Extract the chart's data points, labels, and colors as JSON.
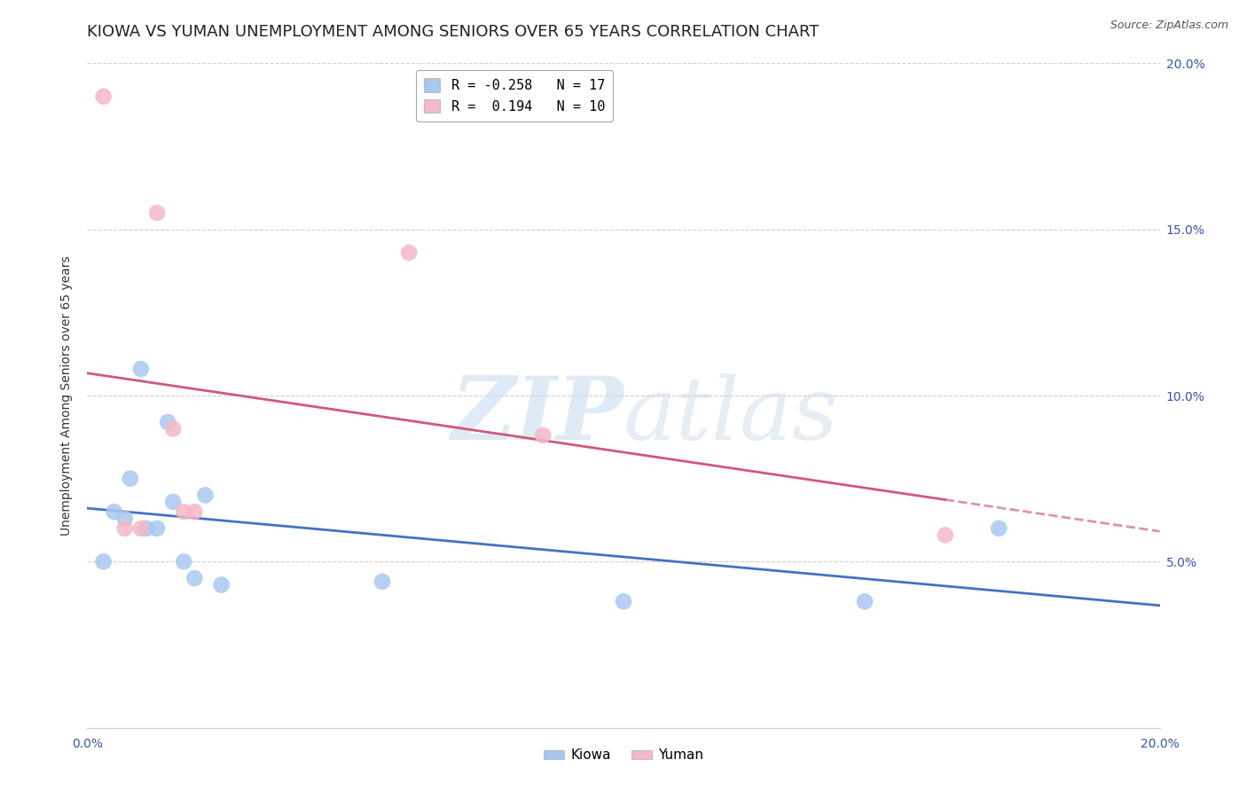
{
  "title": "KIOWA VS YUMAN UNEMPLOYMENT AMONG SENIORS OVER 65 YEARS CORRELATION CHART",
  "source": "Source: ZipAtlas.com",
  "ylabel": "Unemployment Among Seniors over 65 years",
  "xlim": [
    0.0,
    0.2
  ],
  "ylim": [
    0.0,
    0.2
  ],
  "xticks": [
    0.0,
    0.05,
    0.1,
    0.15,
    0.2
  ],
  "yticks": [
    0.0,
    0.05,
    0.1,
    0.15,
    0.2
  ],
  "xtick_labels": [
    "0.0%",
    "",
    "",
    "",
    "20.0%"
  ],
  "ytick_labels_left": [
    "",
    "",
    "",
    "",
    ""
  ],
  "ytick_labels_right": [
    "",
    "5.0%",
    "10.0%",
    "15.0%",
    "20.0%"
  ],
  "kiowa_color": "#a8c8f0",
  "yuman_color": "#f5b8c8",
  "kiowa_line_color": "#4472c4",
  "yuman_line_color": "#d05878",
  "legend_kiowa_R": "-0.258",
  "legend_kiowa_N": "17",
  "legend_yuman_R": "0.194",
  "legend_yuman_N": "10",
  "kiowa_x": [
    0.003,
    0.005,
    0.007,
    0.008,
    0.01,
    0.011,
    0.013,
    0.015,
    0.016,
    0.018,
    0.02,
    0.022,
    0.025,
    0.055,
    0.1,
    0.145,
    0.17
  ],
  "kiowa_y": [
    0.05,
    0.065,
    0.063,
    0.075,
    0.108,
    0.06,
    0.06,
    0.092,
    0.068,
    0.05,
    0.045,
    0.07,
    0.043,
    0.044,
    0.038,
    0.038,
    0.06
  ],
  "yuman_x": [
    0.003,
    0.007,
    0.01,
    0.013,
    0.016,
    0.018,
    0.02,
    0.06,
    0.085,
    0.16
  ],
  "yuman_y": [
    0.19,
    0.06,
    0.06,
    0.155,
    0.09,
    0.065,
    0.065,
    0.143,
    0.088,
    0.058
  ],
  "watermark_top": "ZIP",
  "watermark_bottom": "atlas",
  "background_color": "#ffffff",
  "grid_color": "#d0d0d0",
  "title_fontsize": 13,
  "axis_fontsize": 10,
  "legend_fontsize": 11,
  "source_fontsize": 9
}
